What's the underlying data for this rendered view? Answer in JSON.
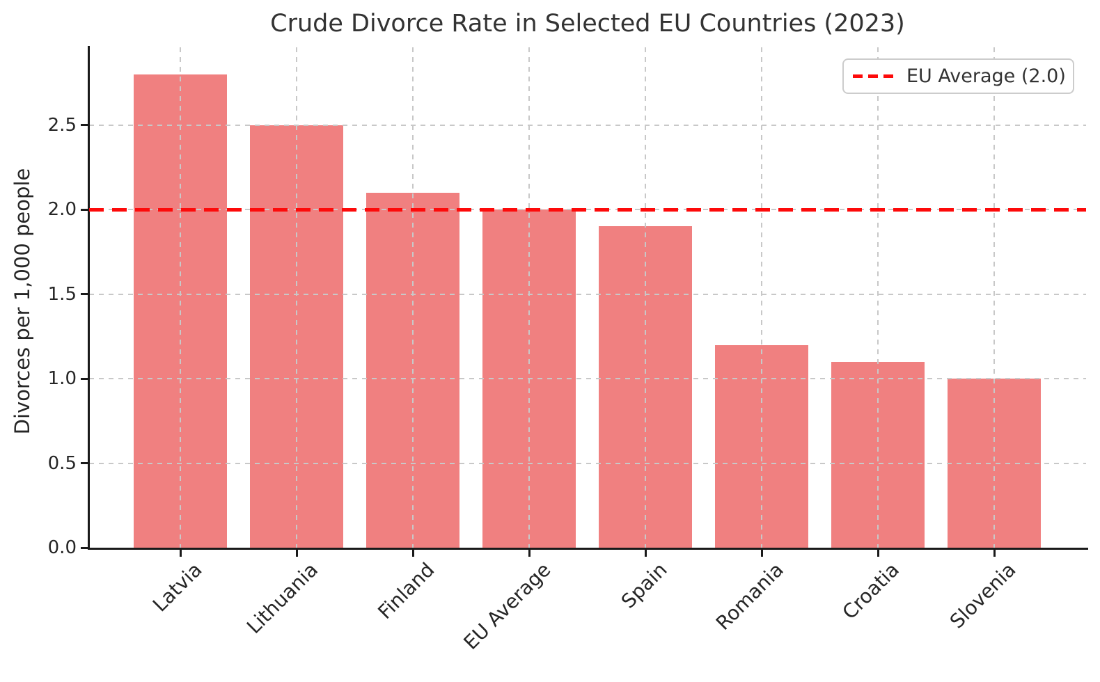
{
  "chart_data": {
    "type": "bar",
    "title": "Crude Divorce Rate in Selected EU Countries (2023)",
    "xlabel": "",
    "ylabel": "Divorces per 1,000 people",
    "categories": [
      "Latvia",
      "Lithuania",
      "Finland",
      "EU Average",
      "Spain",
      "Romania",
      "Croatia",
      "Slovenia"
    ],
    "values": [
      2.8,
      2.5,
      2.1,
      2.0,
      1.9,
      1.2,
      1.1,
      1.0
    ],
    "ylim": [
      0,
      2.96
    ],
    "yticks": [
      0.0,
      0.5,
      1.0,
      1.5,
      2.0,
      2.5
    ],
    "ytick_labels": [
      "0.0",
      "0.5",
      "1.0",
      "1.5",
      "2.0",
      "2.5"
    ],
    "grid": true,
    "grid_style": "dashed",
    "grid_over_bars": true,
    "bar_color": "#f08080",
    "reference_line": {
      "value": 2.0,
      "color": "#fd0a0a",
      "style": "dashed"
    },
    "legend": {
      "position": "upper right",
      "entries": [
        {
          "label": "EU Average (2.0)",
          "color": "#fd0a0a",
          "style": "dashed-line"
        }
      ]
    }
  }
}
